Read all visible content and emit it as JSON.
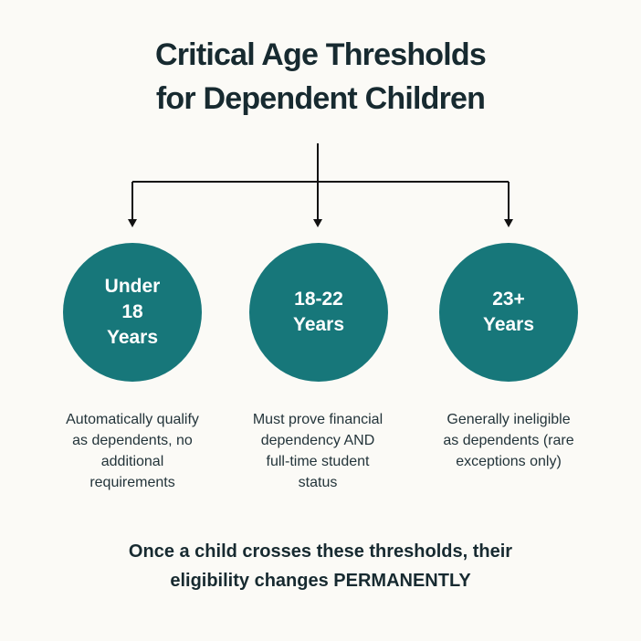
{
  "title": {
    "line1": "Critical Age Thresholds",
    "line2": "for Dependent Children"
  },
  "nodes": [
    {
      "label_lines": [
        "Under",
        "18",
        "Years"
      ],
      "description_lines": [
        "Automatically qualify",
        "as dependents, no",
        "additional",
        "requirements"
      ]
    },
    {
      "label_lines": [
        "18-22",
        "Years"
      ],
      "description_lines": [
        "Must prove financial",
        "dependency AND",
        "full-time student",
        "status"
      ]
    },
    {
      "label_lines": [
        "23+",
        "Years"
      ],
      "description_lines": [
        "Generally ineligible",
        "as dependents (rare",
        "exceptions only)"
      ]
    }
  ],
  "footer": {
    "line1": "Once a child crosses these thresholds, their",
    "line2_prefix": "eligibility changes",
    "line2_emphasis": "PERMANENTLY"
  },
  "colors": {
    "background": "#fbfaf6",
    "circle_fill": "#17777a",
    "text_dark": "#172a30",
    "connector": "#111111"
  }
}
